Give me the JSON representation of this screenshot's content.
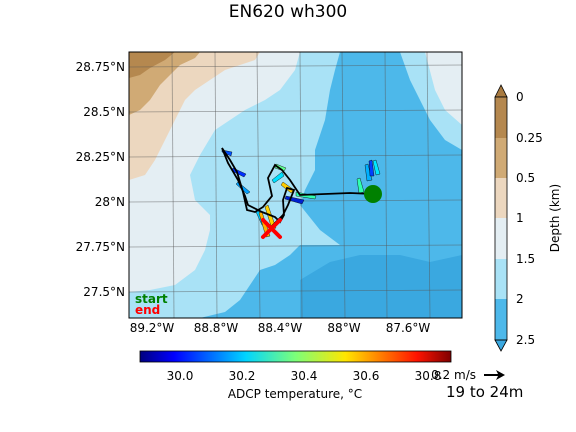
{
  "title": "EN620 wh300",
  "map": {
    "lon_ticks": [
      "89.2°W",
      "88.8°W",
      "88.4°W",
      "88°W",
      "87.6°W"
    ],
    "lat_ticks": [
      "28.75°N",
      "28.5°N",
      "28.25°N",
      "28°N",
      "27.75°N",
      "27.5°N"
    ],
    "legend_start": "start",
    "legend_end": "end",
    "start_color": "#008000",
    "end_color": "#ff0000"
  },
  "depth_colorbar": {
    "label": "Depth (km)",
    "ticks": [
      "0",
      "0.25",
      "0.5",
      "1",
      "1.5",
      "2",
      "2.5"
    ],
    "colors": [
      "#b5884f",
      "#d0aa75",
      "#ecd7bf",
      "#e4eef3",
      "#a9e2f6",
      "#4db8ea"
    ]
  },
  "temp_colorbar": {
    "label": "ADCP temperature, °C",
    "ticks": [
      "30.0",
      "30.2",
      "30.4",
      "30.6",
      "30.8"
    ],
    "range": [
      29.87,
      30.88
    ]
  },
  "quiver_key": {
    "label": "0.2 m/s"
  },
  "depth_range_label": "19 to 24m"
}
